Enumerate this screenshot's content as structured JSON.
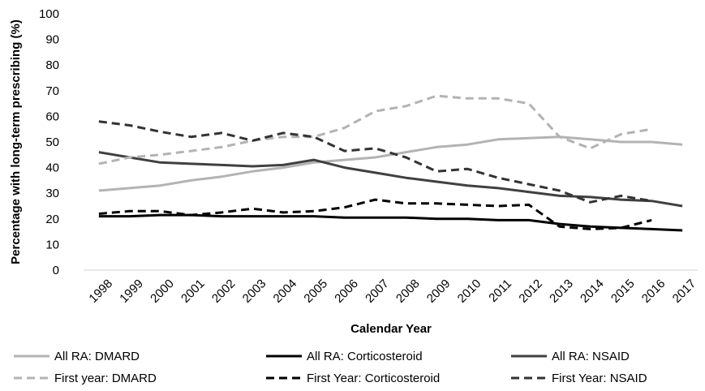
{
  "chart_data": {
    "type": "line",
    "title": "",
    "xlabel": "Calendar Year",
    "ylabel": "Percentage with long-term prescribing (%)",
    "ylim": [
      0,
      100
    ],
    "yticks": [
      "0",
      "10",
      "20",
      "30",
      "40",
      "50",
      "60",
      "70",
      "80",
      "90",
      "100"
    ],
    "categories": [
      "1998",
      "1999",
      "2000",
      "2001",
      "2002",
      "2003",
      "2004",
      "2005",
      "2006",
      "2007",
      "2008",
      "2009",
      "2010",
      "2011",
      "2012",
      "2013",
      "2014",
      "2015",
      "2016",
      "2017"
    ],
    "grid": false,
    "legend_position": "bottom",
    "series": [
      {
        "name": "All RA: DMARD",
        "color": "#b3b3b3",
        "dash": "solid",
        "values": [
          31,
          32,
          33,
          35,
          36.5,
          38.5,
          40,
          42,
          43,
          44,
          46,
          48,
          49,
          51,
          51.5,
          52,
          51,
          50,
          50,
          49
        ]
      },
      {
        "name": "All RA: Corticosteroid",
        "color": "#000000",
        "dash": "solid",
        "values": [
          21,
          21,
          21.5,
          21.5,
          21,
          21,
          21,
          21,
          20.5,
          20.5,
          20.5,
          20,
          20,
          19.5,
          19.5,
          18,
          17,
          16.5,
          16,
          15.5
        ]
      },
      {
        "name": "All RA: NSAID",
        "color": "#404040",
        "dash": "solid",
        "values": [
          46,
          44,
          42,
          41.5,
          41,
          40.5,
          41,
          43,
          40,
          38,
          36,
          34.5,
          33,
          32,
          30.5,
          29,
          28.5,
          27.5,
          27,
          25
        ]
      },
      {
        "name": "First year: DMARD",
        "color": "#b3b3b3",
        "dash": "dashed",
        "values": [
          41.5,
          44,
          45,
          46.5,
          48,
          50.5,
          52,
          52,
          55.5,
          62,
          64,
          68,
          67,
          67,
          65,
          52,
          47.5,
          53,
          55,
          null
        ]
      },
      {
        "name": "First Year: Corticosteroid",
        "color": "#000000",
        "dash": "dashed",
        "values": [
          22,
          23,
          23,
          21.5,
          22.5,
          24,
          22.5,
          23,
          24.5,
          27.5,
          26,
          26,
          25.5,
          25,
          25.5,
          17,
          16,
          16.5,
          19.5,
          null
        ]
      },
      {
        "name": "First Year: NSAID",
        "color": "#333333",
        "dash": "dashed",
        "values": [
          58,
          56.5,
          54,
          52,
          53.5,
          50.5,
          53.5,
          52,
          46.5,
          47.5,
          44,
          38.5,
          39.5,
          36,
          33.5,
          31,
          26.5,
          29,
          27,
          null
        ]
      }
    ]
  }
}
